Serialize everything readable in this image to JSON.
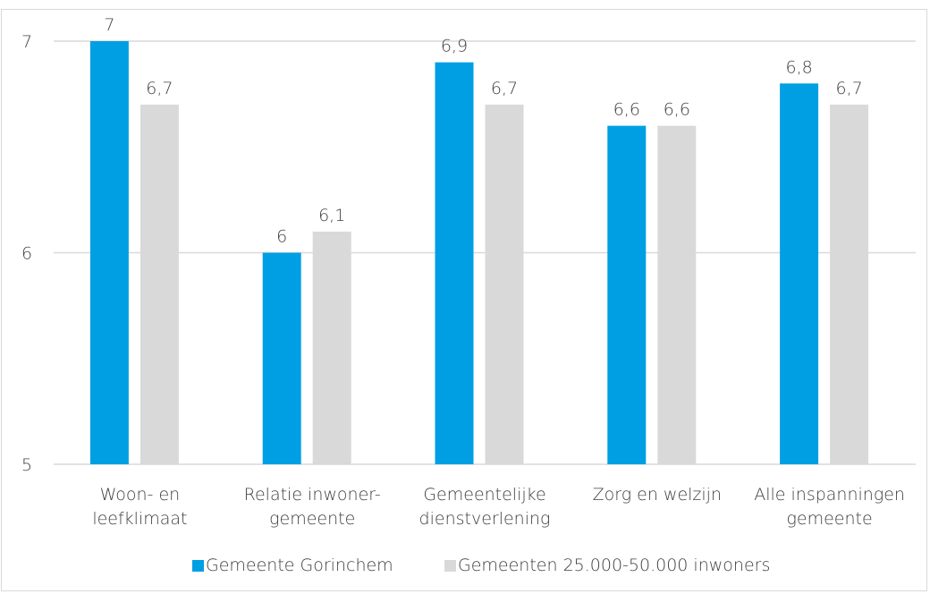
{
  "header": {
    "figure_label": "",
    "caption": ""
  },
  "colors": {
    "series_1": "#009fe3",
    "series_2": "#d9d9d9",
    "gridline": "#d9d9d9",
    "text": "#404040"
  },
  "chart_data": {
    "type": "bar",
    "categories": [
      [
        "Woon- en",
        "leefklimaat"
      ],
      [
        "Relatie inwoner-",
        "gemeente"
      ],
      [
        "Gemeentelijke",
        "dienstverlening"
      ],
      [
        "Zorg en welzijn"
      ],
      [
        "Alle inspanningen",
        "gemeente"
      ]
    ],
    "series": [
      {
        "name": "Gemeente Gorinchem",
        "values": [
          7,
          6,
          6.9,
          6.6,
          6.8
        ],
        "labels": [
          "7",
          "6",
          "6,9",
          "6,6",
          "6,8"
        ]
      },
      {
        "name": "Gemeenten 25.000-50.000 inwoners",
        "values": [
          6.7,
          6.1,
          6.7,
          6.6,
          6.7
        ],
        "labels": [
          "6,7",
          "6,1",
          "6,7",
          "6,6",
          "6,7"
        ]
      }
    ],
    "ylim": [
      5,
      7
    ],
    "yticks": [
      5,
      6,
      7
    ],
    "ytick_labels": [
      "5",
      "6",
      "7"
    ],
    "grid": true,
    "legend": "bottom",
    "title": "",
    "xlabel": "",
    "ylabel": ""
  }
}
